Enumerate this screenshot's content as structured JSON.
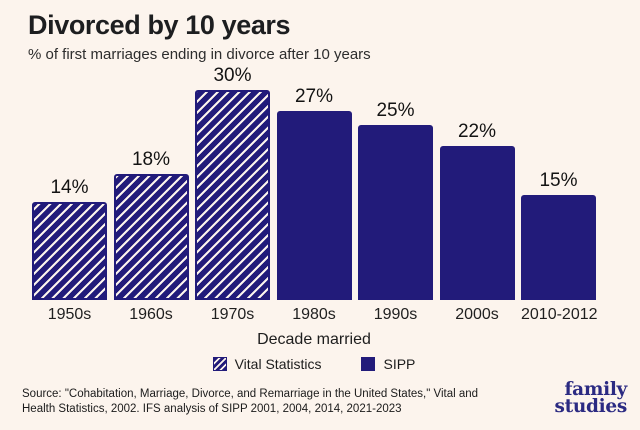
{
  "header": {
    "title": "Divorced by 10 years",
    "subtitle": "% of first marriages ending in divorce after 10 years"
  },
  "colors": {
    "background": "#fcf4ed",
    "bar_navy": "#221b7a",
    "logo_navy": "#2b2a82"
  },
  "chart_data": {
    "type": "bar",
    "title": "Divorced by 10 years",
    "subtitle": "% of first marriages ending in divorce after 10 years",
    "xlabel": "Decade married",
    "ylim": [
      0,
      30
    ],
    "grid": false,
    "legend_position": "bottom",
    "categories": [
      "1950s",
      "1960s",
      "1970s",
      "1980s",
      "1990s",
      "2000s",
      "2010-2012"
    ],
    "series": [
      {
        "name": "Vital Statistics",
        "style": "hatched",
        "values": [
          14,
          18,
          30,
          null,
          null,
          null,
          null
        ]
      },
      {
        "name": "SIPP",
        "style": "solid",
        "values": [
          null,
          null,
          null,
          27,
          25,
          22,
          15
        ]
      }
    ],
    "bars": [
      {
        "category": "1950s",
        "value": 14,
        "label": "14%",
        "series": "Vital Statistics",
        "style": "hatched"
      },
      {
        "category": "1960s",
        "value": 18,
        "label": "18%",
        "series": "Vital Statistics",
        "style": "hatched"
      },
      {
        "category": "1970s",
        "value": 30,
        "label": "30%",
        "series": "Vital Statistics",
        "style": "hatched"
      },
      {
        "category": "1980s",
        "value": 27,
        "label": "27%",
        "series": "SIPP",
        "style": "solid"
      },
      {
        "category": "1990s",
        "value": 25,
        "label": "25%",
        "series": "SIPP",
        "style": "solid"
      },
      {
        "category": "2000s",
        "value": 22,
        "label": "22%",
        "series": "SIPP",
        "style": "solid"
      },
      {
        "category": "2010-2012",
        "value": 15,
        "label": "15%",
        "series": "SIPP",
        "style": "solid"
      }
    ]
  },
  "legend": {
    "items": [
      {
        "label": "Vital Statistics",
        "style": "hatched"
      },
      {
        "label": "SIPP",
        "style": "solid"
      }
    ]
  },
  "footer": {
    "source_lines": [
      "Source: \"Cohabitation, Marriage, Divorce, and Remarriage in the United States,\" Vital and",
      "Health Statistics, 2002. IFS analysis of SIPP 2001, 2004, 2014, 2021-2023"
    ],
    "logo_line1": "family",
    "logo_line2": "studies"
  }
}
